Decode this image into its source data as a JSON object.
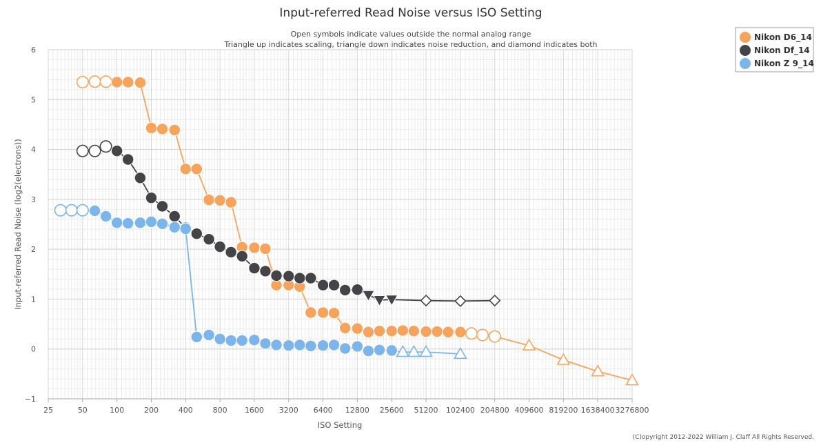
{
  "chart_data": {
    "type": "line",
    "title": "Input-referred Read Noise versus ISO Setting",
    "subtitle_lines": [
      "Open symbols indicate values outside the normal analog range",
      "Triangle up indicates scaling, triangle down indicates noise reduction, and diamond indicates both"
    ],
    "xlabel": "ISO Setting",
    "ylabel": "Input-referred Read Noise (log2(electrons))",
    "x_scale": "log2",
    "xlim": [
      25,
      3276800
    ],
    "ylim": [
      -1,
      6
    ],
    "x_ticks": [
      25,
      50,
      100,
      200,
      400,
      800,
      1600,
      3200,
      6400,
      12800,
      25600,
      51200,
      102400,
      204800,
      409600,
      819200,
      1638400,
      3276800
    ],
    "y_ticks": [
      -1,
      0,
      1,
      2,
      3,
      4,
      5,
      6
    ],
    "grid": true,
    "legend_position": "top-right",
    "credit": "(C)opyright 2012-2022 William J. Claff All Rights Reserved.",
    "series": [
      {
        "name": "Nikon D6_14",
        "color": "#f7a35c",
        "points": [
          {
            "x": 50,
            "y": 5.35,
            "m": "circle",
            "open": true
          },
          {
            "x": 64,
            "y": 5.36,
            "m": "circle",
            "open": true
          },
          {
            "x": 80,
            "y": 5.36,
            "m": "circle",
            "open": true
          },
          {
            "x": 100,
            "y": 5.35,
            "m": "circle",
            "open": false
          },
          {
            "x": 125,
            "y": 5.35,
            "m": "circle",
            "open": false
          },
          {
            "x": 160,
            "y": 5.34,
            "m": "circle",
            "open": false
          },
          {
            "x": 200,
            "y": 4.43,
            "m": "circle",
            "open": false
          },
          {
            "x": 250,
            "y": 4.41,
            "m": "circle",
            "open": false
          },
          {
            "x": 320,
            "y": 4.39,
            "m": "circle",
            "open": false
          },
          {
            "x": 400,
            "y": 3.61,
            "m": "circle",
            "open": false
          },
          {
            "x": 500,
            "y": 3.61,
            "m": "circle",
            "open": false
          },
          {
            "x": 640,
            "y": 2.99,
            "m": "circle",
            "open": false
          },
          {
            "x": 800,
            "y": 2.98,
            "m": "circle",
            "open": false
          },
          {
            "x": 1000,
            "y": 2.94,
            "m": "circle",
            "open": false
          },
          {
            "x": 1250,
            "y": 2.04,
            "m": "circle",
            "open": false
          },
          {
            "x": 1600,
            "y": 2.03,
            "m": "circle",
            "open": false
          },
          {
            "x": 2000,
            "y": 2.01,
            "m": "circle",
            "open": false
          },
          {
            "x": 2500,
            "y": 1.28,
            "m": "circle",
            "open": false
          },
          {
            "x": 3200,
            "y": 1.28,
            "m": "circle",
            "open": false
          },
          {
            "x": 4000,
            "y": 1.25,
            "m": "circle",
            "open": false
          },
          {
            "x": 5000,
            "y": 0.73,
            "m": "circle",
            "open": false
          },
          {
            "x": 6400,
            "y": 0.73,
            "m": "circle",
            "open": false
          },
          {
            "x": 8000,
            "y": 0.72,
            "m": "circle",
            "open": false
          },
          {
            "x": 10000,
            "y": 0.42,
            "m": "circle",
            "open": false
          },
          {
            "x": 12800,
            "y": 0.41,
            "m": "circle",
            "open": false
          },
          {
            "x": 16000,
            "y": 0.34,
            "m": "circle",
            "open": false
          },
          {
            "x": 20000,
            "y": 0.36,
            "m": "circle",
            "open": false
          },
          {
            "x": 25600,
            "y": 0.36,
            "m": "circle",
            "open": false
          },
          {
            "x": 32000,
            "y": 0.37,
            "m": "circle",
            "open": false
          },
          {
            "x": 40000,
            "y": 0.36,
            "m": "circle",
            "open": false
          },
          {
            "x": 51200,
            "y": 0.35,
            "m": "circle",
            "open": false
          },
          {
            "x": 64000,
            "y": 0.35,
            "m": "circle",
            "open": false
          },
          {
            "x": 80000,
            "y": 0.34,
            "m": "circle",
            "open": false
          },
          {
            "x": 102400,
            "y": 0.34,
            "m": "circle",
            "open": false
          },
          {
            "x": 128000,
            "y": 0.31,
            "m": "circle",
            "open": true
          },
          {
            "x": 160000,
            "y": 0.28,
            "m": "circle",
            "open": true
          },
          {
            "x": 204800,
            "y": 0.25,
            "m": "circle",
            "open": true
          },
          {
            "x": 409600,
            "y": 0.07,
            "m": "triangle-up",
            "open": true
          },
          {
            "x": 819200,
            "y": -0.22,
            "m": "triangle-up",
            "open": true
          },
          {
            "x": 1638400,
            "y": -0.45,
            "m": "triangle-up",
            "open": true
          },
          {
            "x": 3276800,
            "y": -0.63,
            "m": "triangle-up",
            "open": true
          }
        ]
      },
      {
        "name": "Nikon Df_14",
        "color": "#434348",
        "points": [
          {
            "x": 50,
            "y": 3.97,
            "m": "circle",
            "open": true
          },
          {
            "x": 64,
            "y": 3.97,
            "m": "circle",
            "open": true
          },
          {
            "x": 80,
            "y": 4.06,
            "m": "circle",
            "open": true
          },
          {
            "x": 100,
            "y": 3.97,
            "m": "circle",
            "open": false
          },
          {
            "x": 125,
            "y": 3.8,
            "m": "circle",
            "open": false
          },
          {
            "x": 160,
            "y": 3.43,
            "m": "circle",
            "open": false
          },
          {
            "x": 200,
            "y": 3.03,
            "m": "circle",
            "open": false
          },
          {
            "x": 250,
            "y": 2.86,
            "m": "circle",
            "open": false
          },
          {
            "x": 320,
            "y": 2.66,
            "m": "circle",
            "open": false
          },
          {
            "x": 400,
            "y": 2.43,
            "m": "circle",
            "open": false
          },
          {
            "x": 500,
            "y": 2.31,
            "m": "circle",
            "open": false
          },
          {
            "x": 640,
            "y": 2.2,
            "m": "circle",
            "open": false
          },
          {
            "x": 800,
            "y": 2.05,
            "m": "circle",
            "open": false
          },
          {
            "x": 1000,
            "y": 1.94,
            "m": "circle",
            "open": false
          },
          {
            "x": 1250,
            "y": 1.86,
            "m": "circle",
            "open": false
          },
          {
            "x": 1600,
            "y": 1.62,
            "m": "circle",
            "open": false
          },
          {
            "x": 2000,
            "y": 1.56,
            "m": "circle",
            "open": false
          },
          {
            "x": 2500,
            "y": 1.47,
            "m": "circle",
            "open": false
          },
          {
            "x": 3200,
            "y": 1.46,
            "m": "circle",
            "open": false
          },
          {
            "x": 4000,
            "y": 1.42,
            "m": "circle",
            "open": false
          },
          {
            "x": 5000,
            "y": 1.42,
            "m": "circle",
            "open": false
          },
          {
            "x": 6400,
            "y": 1.28,
            "m": "circle",
            "open": false
          },
          {
            "x": 8000,
            "y": 1.28,
            "m": "circle",
            "open": false
          },
          {
            "x": 10000,
            "y": 1.18,
            "m": "circle",
            "open": false
          },
          {
            "x": 12800,
            "y": 1.19,
            "m": "circle",
            "open": false
          },
          {
            "x": 16000,
            "y": 1.08,
            "m": "triangle-down",
            "open": false
          },
          {
            "x": 20000,
            "y": 0.98,
            "m": "triangle-down",
            "open": false
          },
          {
            "x": 25600,
            "y": 0.99,
            "m": "triangle-down",
            "open": false
          },
          {
            "x": 51200,
            "y": 0.97,
            "m": "diamond",
            "open": true
          },
          {
            "x": 102400,
            "y": 0.96,
            "m": "diamond",
            "open": true
          },
          {
            "x": 204800,
            "y": 0.97,
            "m": "diamond",
            "open": true
          }
        ]
      },
      {
        "name": "Nikon Z 9_14",
        "color": "#7cb5ec",
        "points": [
          {
            "x": 32,
            "y": 2.78,
            "m": "circle",
            "open": true
          },
          {
            "x": 40,
            "y": 2.78,
            "m": "circle",
            "open": true
          },
          {
            "x": 50,
            "y": 2.78,
            "m": "circle",
            "open": true
          },
          {
            "x": 64,
            "y": 2.77,
            "m": "circle",
            "open": false
          },
          {
            "x": 80,
            "y": 2.66,
            "m": "circle",
            "open": false
          },
          {
            "x": 100,
            "y": 2.53,
            "m": "circle",
            "open": false
          },
          {
            "x": 125,
            "y": 2.52,
            "m": "circle",
            "open": false
          },
          {
            "x": 160,
            "y": 2.53,
            "m": "circle",
            "open": false
          },
          {
            "x": 200,
            "y": 2.55,
            "m": "circle",
            "open": false
          },
          {
            "x": 250,
            "y": 2.51,
            "m": "circle",
            "open": false
          },
          {
            "x": 320,
            "y": 2.44,
            "m": "circle",
            "open": false
          },
          {
            "x": 400,
            "y": 2.41,
            "m": "circle",
            "open": false
          },
          {
            "x": 500,
            "y": 0.24,
            "m": "circle",
            "open": false
          },
          {
            "x": 640,
            "y": 0.28,
            "m": "circle",
            "open": false
          },
          {
            "x": 800,
            "y": 0.2,
            "m": "circle",
            "open": false
          },
          {
            "x": 1000,
            "y": 0.17,
            "m": "circle",
            "open": false
          },
          {
            "x": 1250,
            "y": 0.17,
            "m": "circle",
            "open": false
          },
          {
            "x": 1600,
            "y": 0.18,
            "m": "circle",
            "open": false
          },
          {
            "x": 2000,
            "y": 0.11,
            "m": "circle",
            "open": false
          },
          {
            "x": 2500,
            "y": 0.08,
            "m": "circle",
            "open": false
          },
          {
            "x": 3200,
            "y": 0.07,
            "m": "circle",
            "open": false
          },
          {
            "x": 4000,
            "y": 0.08,
            "m": "circle",
            "open": false
          },
          {
            "x": 5000,
            "y": 0.06,
            "m": "circle",
            "open": false
          },
          {
            "x": 6400,
            "y": 0.07,
            "m": "circle",
            "open": false
          },
          {
            "x": 8000,
            "y": 0.08,
            "m": "circle",
            "open": false
          },
          {
            "x": 10000,
            "y": 0.01,
            "m": "circle",
            "open": false
          },
          {
            "x": 12800,
            "y": 0.05,
            "m": "circle",
            "open": false
          },
          {
            "x": 16000,
            "y": -0.04,
            "m": "circle",
            "open": false
          },
          {
            "x": 20000,
            "y": -0.02,
            "m": "circle",
            "open": false
          },
          {
            "x": 25600,
            "y": -0.03,
            "m": "circle",
            "open": false
          },
          {
            "x": 32000,
            "y": -0.06,
            "m": "triangle-up",
            "open": true
          },
          {
            "x": 40000,
            "y": -0.06,
            "m": "triangle-up",
            "open": true
          },
          {
            "x": 51200,
            "y": -0.06,
            "m": "triangle-up",
            "open": true
          },
          {
            "x": 102400,
            "y": -0.1,
            "m": "triangle-up",
            "open": true
          }
        ]
      }
    ]
  }
}
